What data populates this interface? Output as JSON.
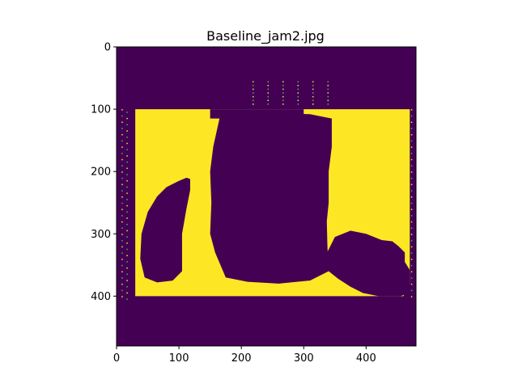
{
  "chart_data": {
    "type": "heatmap",
    "title": "Baseline_jam2.jpg",
    "xlabel": "",
    "ylabel": "",
    "image_width": 480,
    "image_height": 480,
    "xlim": [
      0,
      480
    ],
    "ylim": [
      480,
      0
    ],
    "x_ticks": [
      0,
      100,
      200,
      300,
      400
    ],
    "y_ticks": [
      0,
      100,
      200,
      300,
      400
    ],
    "x_tick_labels": [
      "0",
      "100",
      "200",
      "300",
      "400"
    ],
    "y_tick_labels": [
      "0",
      "100",
      "200",
      "300",
      "400"
    ],
    "colormap": "viridis",
    "colors": {
      "low": "#440154",
      "high": "#fde725",
      "mid": "#35b779"
    },
    "value_range": [
      0,
      1
    ],
    "regions": [
      {
        "value": 1,
        "shape": "polygon",
        "points": [
          [
            30,
            100
          ],
          [
            470,
            100
          ],
          [
            470,
            380
          ],
          [
            460,
            400
          ],
          [
            30,
            400
          ]
        ]
      },
      {
        "value": 0,
        "shape": "polygon",
        "points": [
          [
            165,
            115
          ],
          [
            200,
            108
          ],
          [
            255,
            106
          ],
          [
            310,
            108
          ],
          [
            345,
            115
          ],
          [
            345,
            160
          ],
          [
            340,
            200
          ],
          [
            340,
            250
          ],
          [
            337,
            280
          ],
          [
            338,
            320
          ],
          [
            340,
            360
          ],
          [
            310,
            375
          ],
          [
            260,
            380
          ],
          [
            210,
            377
          ],
          [
            175,
            370
          ],
          [
            158,
            330
          ],
          [
            150,
            300
          ],
          [
            152,
            250
          ],
          [
            150,
            200
          ],
          [
            155,
            160
          ]
        ]
      },
      {
        "value": 0,
        "shape": "polygon",
        "points": [
          [
            40,
            300
          ],
          [
            50,
            265
          ],
          [
            65,
            240
          ],
          [
            80,
            225
          ],
          [
            100,
            215
          ],
          [
            112,
            210
          ],
          [
            118,
            212
          ],
          [
            118,
            230
          ],
          [
            112,
            260
          ],
          [
            105,
            300
          ],
          [
            105,
            360
          ],
          [
            90,
            375
          ],
          [
            65,
            378
          ],
          [
            45,
            370
          ],
          [
            38,
            340
          ]
        ]
      },
      {
        "value": 0,
        "shape": "polygon",
        "points": [
          [
            335,
            335
          ],
          [
            350,
            305
          ],
          [
            375,
            295
          ],
          [
            400,
            300
          ],
          [
            425,
            310
          ],
          [
            442,
            312
          ],
          [
            452,
            320
          ],
          [
            462,
            330
          ],
          [
            462,
            345
          ],
          [
            470,
            358
          ],
          [
            470,
            395
          ],
          [
            455,
            400
          ],
          [
            420,
            400
          ],
          [
            395,
            395
          ],
          [
            375,
            385
          ],
          [
            355,
            372
          ],
          [
            340,
            360
          ]
        ]
      },
      {
        "value": 0,
        "shape": "polygon",
        "points": [
          [
            150,
            100
          ],
          [
            300,
            100
          ],
          [
            300,
            115
          ],
          [
            150,
            115
          ]
        ]
      }
    ]
  }
}
